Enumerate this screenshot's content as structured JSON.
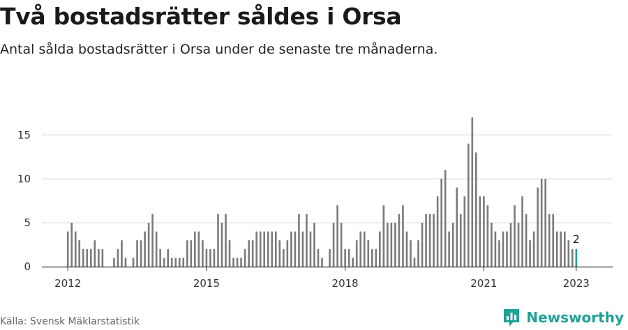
{
  "header": {
    "title": "Två bostadsrätter såldes i Orsa",
    "subtitle": "Antal sålda bostadsrätter i Orsa under de senaste tre månaderna."
  },
  "footer": {
    "source": "Källa: Svensk Mäklarstatistik",
    "brand": "Newsworthy"
  },
  "colors": {
    "bar": "#7a7a7a",
    "highlight": "#1fa197",
    "grid": "#dddddd",
    "axis": "#333333"
  },
  "chart_data": {
    "type": "bar",
    "title": "Två bostadsrätter såldes i Orsa",
    "xlabel": "",
    "ylabel": "",
    "x_start": "2011-01",
    "interval": "month",
    "ylim": [
      0,
      18
    ],
    "yticks": [
      0,
      5,
      10,
      15
    ],
    "xticks": [
      {
        "label": "2012",
        "x": "2012-01"
      },
      {
        "label": "2015",
        "x": "2015-01"
      },
      {
        "label": "2018",
        "x": "2018-01"
      },
      {
        "label": "2021",
        "x": "2021-01"
      },
      {
        "label": "2023",
        "x": "2023-01"
      }
    ],
    "values": [
      0,
      0,
      0,
      0,
      0,
      0,
      0,
      0,
      0,
      0,
      0,
      0,
      4,
      5,
      4,
      3,
      2,
      2,
      2,
      3,
      2,
      2,
      0,
      0,
      1,
      2,
      3,
      1,
      0,
      1,
      3,
      3,
      4,
      5,
      6,
      4,
      2,
      1,
      2,
      1,
      1,
      1,
      1,
      3,
      3,
      4,
      4,
      3,
      2,
      2,
      2,
      6,
      5,
      6,
      3,
      1,
      1,
      1,
      2,
      3,
      3,
      4,
      4,
      4,
      4,
      4,
      4,
      3,
      2,
      3,
      4,
      4,
      6,
      4,
      6,
      4,
      5,
      2,
      1,
      0,
      2,
      5,
      7,
      5,
      2,
      2,
      1,
      3,
      4,
      4,
      3,
      2,
      2,
      4,
      7,
      5,
      5,
      5,
      6,
      7,
      4,
      3,
      1,
      3,
      5,
      6,
      6,
      6,
      8,
      10,
      11,
      4,
      5,
      9,
      6,
      8,
      14,
      17,
      13,
      8,
      8,
      7,
      5,
      4,
      3,
      4,
      4,
      5,
      7,
      5,
      8,
      6,
      3,
      4,
      9,
      10,
      10,
      6,
      6,
      4,
      4,
      4,
      3,
      2,
      2
    ],
    "highlight": {
      "x": "2023-01",
      "value": 2,
      "label": "2"
    }
  }
}
